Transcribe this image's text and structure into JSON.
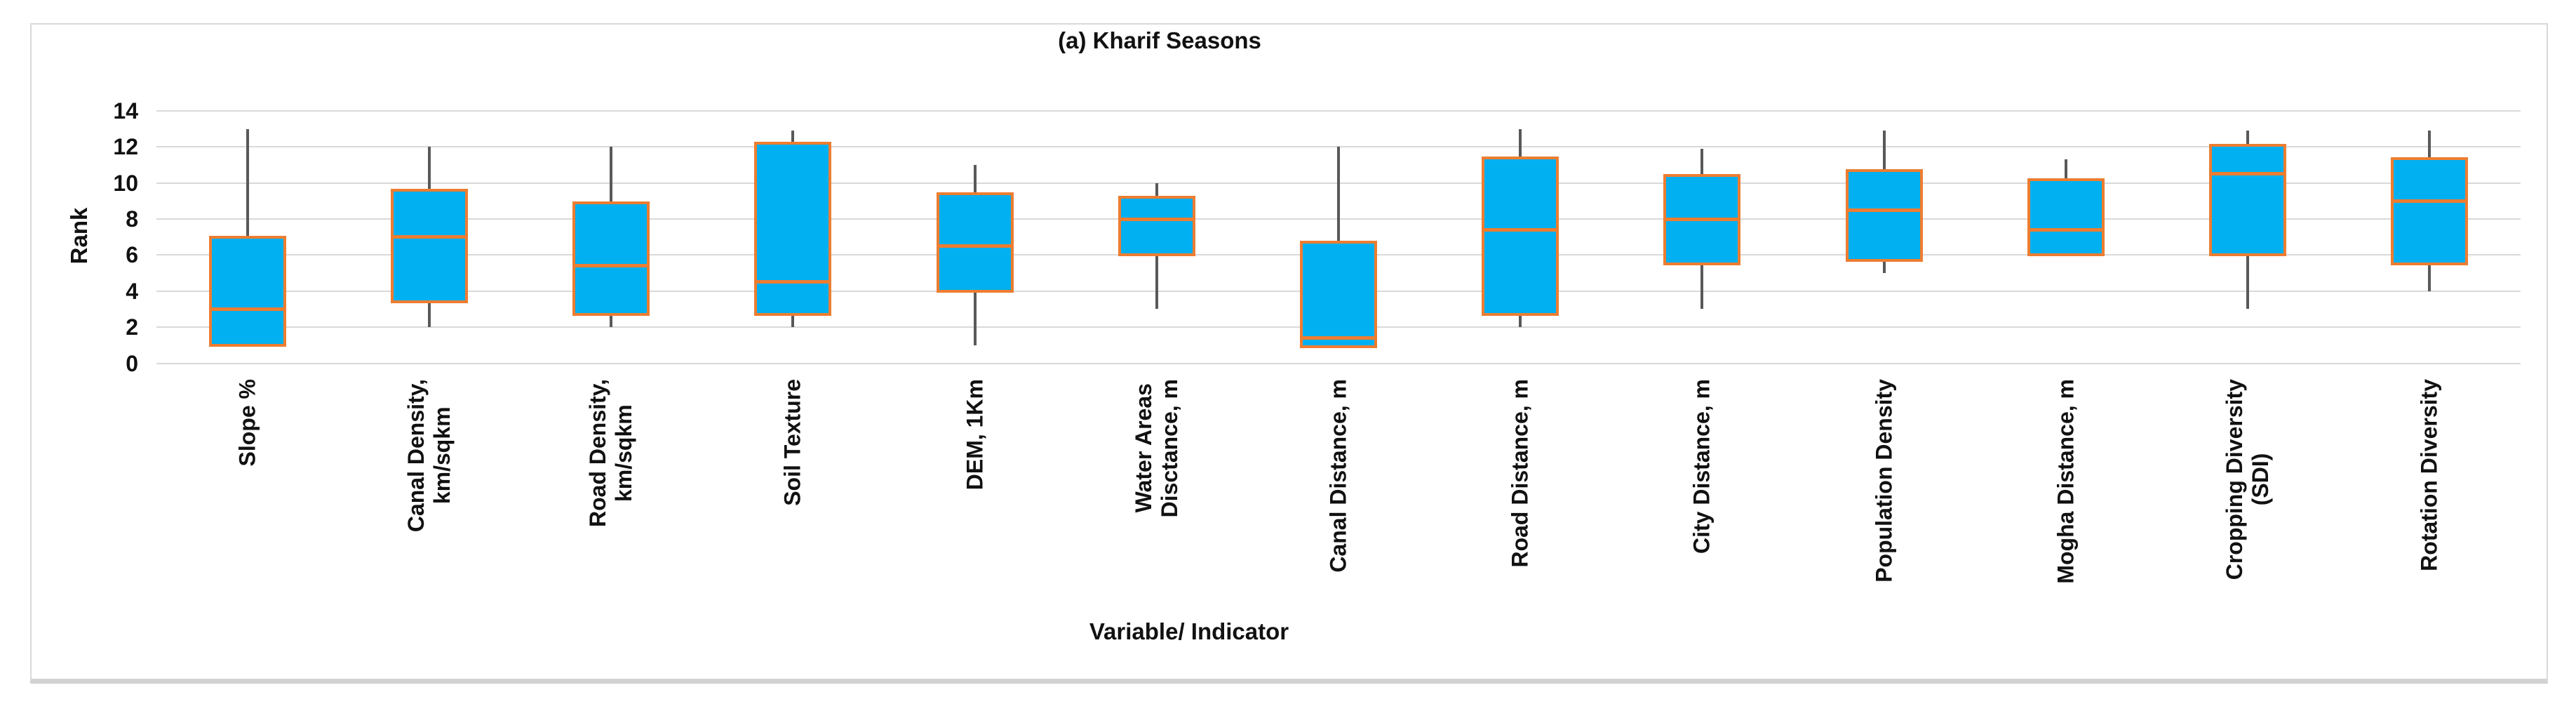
{
  "figure": {
    "title": "(a) Kharif Seasons",
    "x_axis_title": "Variable/ Indicator",
    "y_axis_title": "Rank"
  },
  "chart_data": {
    "type": "boxplot",
    "title": "(a) Kharif Seasons",
    "xlabel": "Variable/ Indicator",
    "ylabel": "Rank",
    "ylim": [
      0,
      14
    ],
    "y_ticks": [
      0,
      2,
      4,
      6,
      8,
      10,
      12,
      14
    ],
    "grid": true,
    "legend_position": "none",
    "categories": [
      "Slope %",
      "Canal Density,\nkm/sqkm",
      "Road Density,\nkm/sqkm",
      "Soil Texture",
      "DEM, 1Km",
      "Water Areas\nDisctance, m",
      "Canal Distance, m",
      "Road Distance, m",
      "City Distance, m",
      "Population Density",
      "Mogha Distance, m",
      "Cropping Diversity\n(SDI)",
      "Rotation Diversity"
    ],
    "series": [
      {
        "name": "Rank",
        "boxes": [
          {
            "min": 1,
            "q1": 1,
            "median": 3,
            "q3": 7,
            "max": 13
          },
          {
            "min": 2,
            "q1": 3.4,
            "median": 7,
            "q3": 9.6,
            "max": 12
          },
          {
            "min": 2,
            "q1": 2.7,
            "median": 5.4,
            "q3": 8.9,
            "max": 12
          },
          {
            "min": 2,
            "q1": 2.7,
            "median": 4.5,
            "q3": 12.2,
            "max": 12.9
          },
          {
            "min": 1,
            "q1": 4,
            "median": 6.5,
            "q3": 9.4,
            "max": 11
          },
          {
            "min": 3,
            "q1": 6,
            "median": 8,
            "q3": 9.2,
            "max": 10
          },
          {
            "min": 0.9,
            "q1": 0.9,
            "median": 1.4,
            "q3": 6.7,
            "max": 12
          },
          {
            "min": 2,
            "q1": 2.7,
            "median": 7.4,
            "q3": 11.4,
            "max": 13
          },
          {
            "min": 3,
            "q1": 5.5,
            "median": 8,
            "q3": 10.4,
            "max": 11.9
          },
          {
            "min": 5,
            "q1": 5.7,
            "median": 8.5,
            "q3": 10.7,
            "max": 12.9
          },
          {
            "min": 6,
            "q1": 6,
            "median": 7.4,
            "q3": 10.2,
            "max": 11.3
          },
          {
            "min": 3,
            "q1": 6,
            "median": 10.5,
            "q3": 12.1,
            "max": 12.9
          },
          {
            "min": 4,
            "q1": 5.5,
            "median": 9,
            "q3": 11.35,
            "max": 12.9
          }
        ]
      }
    ]
  },
  "style": {
    "box_fill": "#00B0F0",
    "box_border": "#ED7D31",
    "median_color": "#ED7D31",
    "whisker_color": "#595959",
    "gridline_color": "#D9D9D9",
    "text_color": "#111111",
    "figure_border": "#D9D9D9",
    "background": "#FFFFFF"
  }
}
